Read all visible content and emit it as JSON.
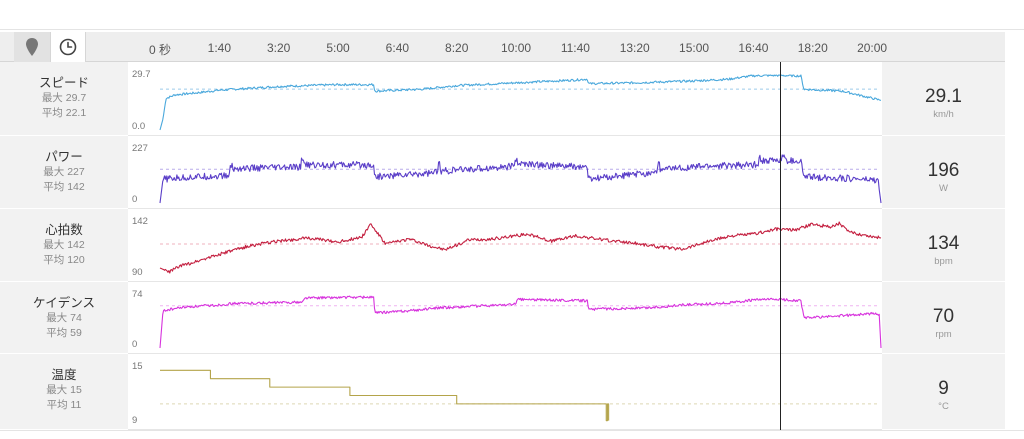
{
  "toolbar": {
    "map_button_icon": "map-pin-icon",
    "time_button_icon": "clock-icon"
  },
  "chart_data": {
    "type": "line",
    "x_ticks": [
      "0 秒",
      "1:40",
      "3:20",
      "5:00",
      "6:40",
      "8:20",
      "10:00",
      "11:40",
      "13:20",
      "15:00",
      "16:40",
      "18:20",
      "20:00"
    ],
    "x_tick_seconds": [
      0,
      100,
      200,
      300,
      400,
      500,
      600,
      700,
      800,
      900,
      1000,
      1100,
      1200
    ],
    "x_range_seconds": [
      0,
      1215
    ],
    "cursor_seconds": 1045,
    "panels": [
      {
        "key": "speed",
        "title": "スピード",
        "max_label": "最大 29.7",
        "avg_label": "平均 22.1",
        "ymax_label": "29.7",
        "ymin_label": "0.0",
        "ylim": [
          0,
          29.7
        ],
        "avg": 22.1,
        "current_value": "29.1",
        "unit": "km/h",
        "color": "#4aa8dc",
        "avg_line_color": "#9ccbea",
        "points": [
          [
            0,
            0
          ],
          [
            5,
            6
          ],
          [
            10,
            17
          ],
          [
            25,
            19
          ],
          [
            60,
            20
          ],
          [
            100,
            21.5
          ],
          [
            150,
            22.5
          ],
          [
            200,
            23.5
          ],
          [
            250,
            24
          ],
          [
            300,
            24.5
          ],
          [
            360,
            24.5
          ],
          [
            362,
            21
          ],
          [
            440,
            22
          ],
          [
            500,
            24
          ],
          [
            600,
            25.5
          ],
          [
            700,
            27
          ],
          [
            720,
            27.5
          ],
          [
            722,
            25
          ],
          [
            800,
            25.5
          ],
          [
            900,
            26.5
          ],
          [
            960,
            27.5
          ],
          [
            980,
            28.5
          ],
          [
            1000,
            29.3
          ],
          [
            1040,
            29.5
          ],
          [
            1080,
            29.2
          ],
          [
            1085,
            22
          ],
          [
            1150,
            21
          ],
          [
            1215,
            16
          ]
        ],
        "noise": 0.6
      },
      {
        "key": "power",
        "title": "パワー",
        "max_label": "最大 227",
        "avg_label": "平均 142",
        "ymax_label": "227",
        "ymin_label": "0",
        "ylim": [
          0,
          227
        ],
        "avg": 142,
        "current_value": "196",
        "unit": "W",
        "color": "#5a3ec8",
        "avg_line_color": "#b8acea",
        "points": [
          [
            0,
            0
          ],
          [
            5,
            100
          ],
          [
            60,
            110
          ],
          [
            120,
            115
          ],
          [
            125,
            145
          ],
          [
            240,
            150
          ],
          [
            245,
            160
          ],
          [
            360,
            160
          ],
          [
            362,
            110
          ],
          [
            450,
            125
          ],
          [
            480,
            135
          ],
          [
            600,
            155
          ],
          [
            602,
            165
          ],
          [
            720,
            150
          ],
          [
            722,
            100
          ],
          [
            820,
            125
          ],
          [
            860,
            145
          ],
          [
            920,
            155
          ],
          [
            1000,
            160
          ],
          [
            1020,
            180
          ],
          [
            1080,
            175
          ],
          [
            1085,
            110
          ],
          [
            1150,
            105
          ],
          [
            1210,
            95
          ],
          [
            1215,
            0
          ]
        ],
        "noise": 14,
        "spikes": [
          [
            120,
            40
          ],
          [
            240,
            38
          ],
          [
            470,
            35
          ],
          [
            600,
            30
          ],
          [
            840,
            28
          ],
          [
            1010,
            30
          ],
          [
            1050,
            25
          ]
        ]
      },
      {
        "key": "heart_rate",
        "title": "心拍数",
        "max_label": "最大 142",
        "avg_label": "平均 120",
        "ymax_label": "142",
        "ymin_label": "90",
        "ylim": [
          88,
          142
        ],
        "avg": 120,
        "current_value": "134",
        "unit": "bpm",
        "color": "#c42040",
        "avg_line_color": "#efb0bd",
        "points": [
          [
            0,
            96
          ],
          [
            15,
            92
          ],
          [
            30,
            97
          ],
          [
            90,
            108
          ],
          [
            150,
            118
          ],
          [
            200,
            123
          ],
          [
            250,
            126
          ],
          [
            300,
            122
          ],
          [
            340,
            127
          ],
          [
            355,
            140
          ],
          [
            380,
            120
          ],
          [
            420,
            125
          ],
          [
            450,
            119
          ],
          [
            480,
            114
          ],
          [
            520,
            124
          ],
          [
            560,
            125
          ],
          [
            620,
            130
          ],
          [
            660,
            123
          ],
          [
            700,
            128
          ],
          [
            750,
            124
          ],
          [
            800,
            121
          ],
          [
            840,
            117
          ],
          [
            880,
            115
          ],
          [
            920,
            122
          ],
          [
            960,
            128
          ],
          [
            1000,
            130
          ],
          [
            1040,
            135
          ],
          [
            1070,
            134
          ],
          [
            1100,
            140
          ],
          [
            1130,
            137
          ],
          [
            1145,
            141
          ],
          [
            1160,
            132
          ],
          [
            1215,
            126
          ]
        ],
        "noise": 1.6
      },
      {
        "key": "cadence",
        "title": "ケイデンス",
        "max_label": "最大 74",
        "avg_label": "平均 59",
        "ymax_label": "74",
        "ymin_label": "0",
        "ylim": [
          0,
          74
        ],
        "avg": 59,
        "current_value": "70",
        "unit": "rpm",
        "color": "#d733dd",
        "avg_line_color": "#efb4f1",
        "points": [
          [
            0,
            0
          ],
          [
            5,
            52
          ],
          [
            40,
            57
          ],
          [
            100,
            60
          ],
          [
            120,
            62
          ],
          [
            240,
            64
          ],
          [
            245,
            70
          ],
          [
            360,
            71
          ],
          [
            362,
            49
          ],
          [
            420,
            52
          ],
          [
            470,
            56
          ],
          [
            600,
            61
          ],
          [
            602,
            68
          ],
          [
            720,
            66
          ],
          [
            722,
            54
          ],
          [
            820,
            56
          ],
          [
            880,
            60
          ],
          [
            960,
            63
          ],
          [
            1000,
            67
          ],
          [
            1040,
            68
          ],
          [
            1080,
            66
          ],
          [
            1085,
            42
          ],
          [
            1130,
            44
          ],
          [
            1200,
            48
          ],
          [
            1212,
            47
          ],
          [
            1215,
            0
          ]
        ],
        "noise": 1.8
      },
      {
        "key": "temperature",
        "title": "温度",
        "max_label": "最大 15",
        "avg_label": "平均 11",
        "ymax_label": "15",
        "ymin_label": "9",
        "ylim": [
          8.6,
          15.4
        ],
        "avg": 11,
        "current_value": "9",
        "unit": "°C",
        "color": "#b4a44a",
        "avg_line_color": "#ddd8b4",
        "steps": [
          [
            0,
            15
          ],
          [
            85,
            14
          ],
          [
            185,
            13
          ],
          [
            320,
            12
          ],
          [
            500,
            11
          ],
          [
            750,
            11
          ],
          [
            752,
            9
          ],
          [
            754,
            11
          ],
          [
            756,
            9
          ]
        ],
        "end_seconds": 756
      }
    ]
  }
}
